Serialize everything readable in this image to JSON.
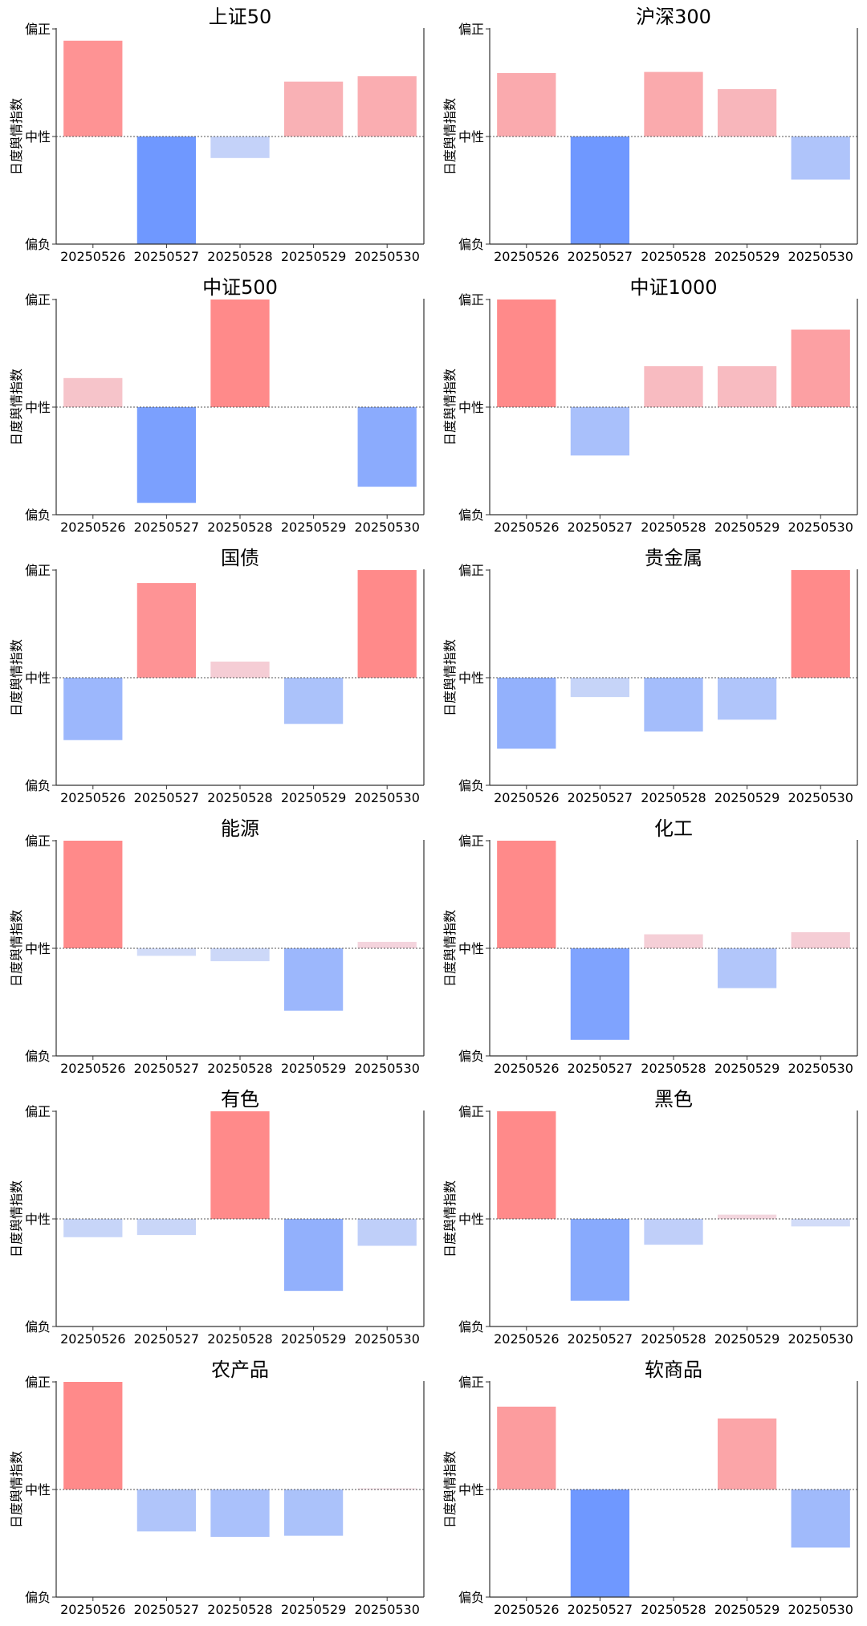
{
  "chart_data": [
    {
      "type": "bar",
      "title": "上证50",
      "ylabel": "日度舆情指数",
      "categories": [
        "20250526",
        "20250527",
        "20250528",
        "20250529",
        "20250530"
      ],
      "values": [
        0.89,
        -1.0,
        -0.2,
        0.51,
        0.56
      ],
      "ylim": [
        -1,
        1
      ],
      "ytick_labels": [
        "偏负",
        "中性",
        "偏正"
      ]
    },
    {
      "type": "bar",
      "title": "沪深300",
      "ylabel": "日度舆情指数",
      "categories": [
        "20250526",
        "20250527",
        "20250528",
        "20250529",
        "20250530"
      ],
      "values": [
        0.59,
        -1.0,
        0.6,
        0.44,
        -0.4
      ],
      "ylim": [
        -1,
        1
      ],
      "ytick_labels": [
        "偏负",
        "中性",
        "偏正"
      ]
    },
    {
      "type": "bar",
      "title": "中证500",
      "ylabel": "日度舆情指数",
      "categories": [
        "20250526",
        "20250527",
        "20250528",
        "20250529",
        "20250530"
      ],
      "values": [
        0.27,
        -0.89,
        1.0,
        0.0,
        -0.74
      ],
      "ylim": [
        -1,
        1
      ],
      "ytick_labels": [
        "偏负",
        "中性",
        "偏正"
      ]
    },
    {
      "type": "bar",
      "title": "中证1000",
      "ylabel": "日度舆情指数",
      "categories": [
        "20250526",
        "20250527",
        "20250528",
        "20250529",
        "20250530"
      ],
      "values": [
        1.0,
        -0.45,
        0.38,
        0.38,
        0.72
      ],
      "ylim": [
        -1,
        1
      ],
      "ytick_labels": [
        "偏负",
        "中性",
        "偏正"
      ]
    },
    {
      "type": "bar",
      "title": "国债",
      "ylabel": "日度舆情指数",
      "categories": [
        "20250526",
        "20250527",
        "20250528",
        "20250529",
        "20250530"
      ],
      "values": [
        -0.58,
        0.88,
        0.15,
        -0.43,
        1.0
      ],
      "ylim": [
        -1,
        1
      ],
      "ytick_labels": [
        "偏负",
        "中性",
        "偏正"
      ]
    },
    {
      "type": "bar",
      "title": "贵金属",
      "ylabel": "日度舆情指数",
      "categories": [
        "20250526",
        "20250527",
        "20250528",
        "20250529",
        "20250530"
      ],
      "values": [
        -0.66,
        -0.18,
        -0.5,
        -0.39,
        1.0
      ],
      "ylim": [
        -1,
        1
      ],
      "ytick_labels": [
        "偏负",
        "中性",
        "偏正"
      ]
    },
    {
      "type": "bar",
      "title": "能源",
      "ylabel": "日度舆情指数",
      "categories": [
        "20250526",
        "20250527",
        "20250528",
        "20250529",
        "20250530"
      ],
      "values": [
        1.0,
        -0.07,
        -0.12,
        -0.58,
        0.06
      ],
      "ylim": [
        -1,
        1
      ],
      "ytick_labels": [
        "偏负",
        "中性",
        "偏正"
      ]
    },
    {
      "type": "bar",
      "title": "化工",
      "ylabel": "日度舆情指数",
      "categories": [
        "20250526",
        "20250527",
        "20250528",
        "20250529",
        "20250530"
      ],
      "values": [
        1.0,
        -0.85,
        0.13,
        -0.37,
        0.15
      ],
      "ylim": [
        -1,
        1
      ],
      "ytick_labels": [
        "偏负",
        "中性",
        "偏正"
      ]
    },
    {
      "type": "bar",
      "title": "有色",
      "ylabel": "日度舆情指数",
      "categories": [
        "20250526",
        "20250527",
        "20250528",
        "20250529",
        "20250530"
      ],
      "values": [
        -0.17,
        -0.15,
        1.0,
        -0.67,
        -0.25
      ],
      "ylim": [
        -1,
        1
      ],
      "ytick_labels": [
        "偏负",
        "中性",
        "偏正"
      ]
    },
    {
      "type": "bar",
      "title": "黑色",
      "ylabel": "日度舆情指数",
      "categories": [
        "20250526",
        "20250527",
        "20250528",
        "20250529",
        "20250530"
      ],
      "values": [
        1.0,
        -0.76,
        -0.24,
        0.04,
        -0.07
      ],
      "ylim": [
        -1,
        1
      ],
      "ytick_labels": [
        "偏负",
        "中性",
        "偏正"
      ]
    },
    {
      "type": "bar",
      "title": "农产品",
      "ylabel": "日度舆情指数",
      "categories": [
        "20250526",
        "20250527",
        "20250528",
        "20250529",
        "20250530"
      ],
      "values": [
        1.0,
        -0.39,
        -0.44,
        -0.43,
        0.01
      ],
      "ylim": [
        -1,
        1
      ],
      "ytick_labels": [
        "偏负",
        "中性",
        "偏正"
      ]
    },
    {
      "type": "bar",
      "title": "软商品",
      "ylabel": "日度舆情指数",
      "categories": [
        "20250526",
        "20250527",
        "20250528",
        "20250529",
        "20250530"
      ],
      "values": [
        0.77,
        -1.0,
        0.0,
        0.66,
        -0.54
      ],
      "ylim": [
        -1,
        1
      ],
      "ytick_labels": [
        "偏负",
        "中性",
        "偏正"
      ]
    }
  ],
  "colors": {
    "strong_positive": "#ff8a8a",
    "weak_positive": "#f3d9e2",
    "strong_negative": "#6f98ff",
    "weak_negative": "#d9e1f7",
    "axis": "#333333",
    "zero_line": "#555555"
  }
}
